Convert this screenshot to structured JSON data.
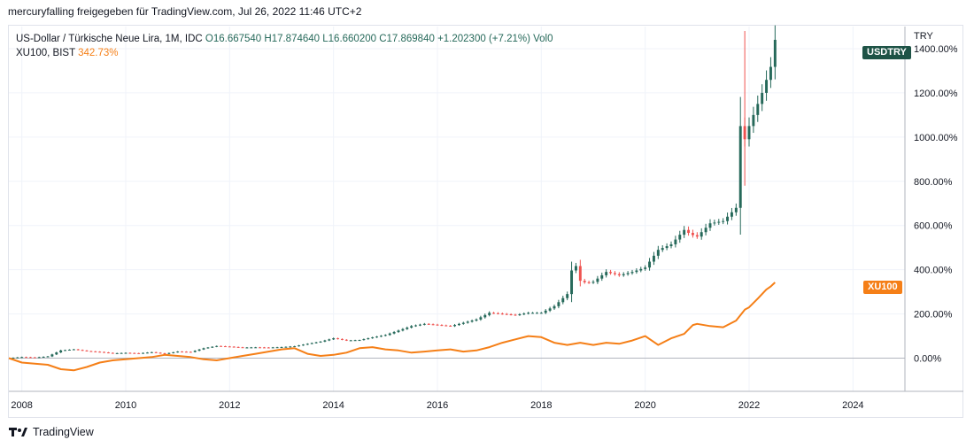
{
  "header": {
    "text": "mercuryfalling freigegeben für TradingView.com, Jul 26, 2022 11:46 UTC+2"
  },
  "legend": {
    "main_symbol": "US-Dollar / Türkische Neue Lira, 1M, IDC",
    "main_values": "O16.667540  H17.874640  L16.660200  C17.869840  +1.202300 (+7.21%)  Vol0",
    "compare_symbol": "XU100, BIST",
    "compare_value": "342.73%"
  },
  "price_tags": {
    "usdtry": "USDTRY",
    "xu100": "XU100"
  },
  "footer": {
    "brand": "TradingView"
  },
  "colors": {
    "up": "#26695a",
    "down": "#ef5350",
    "compare": "#f57f17",
    "grid": "#f0f3fa",
    "usdtry_tag": "#1e5346",
    "xu100_tag": "#f57f17"
  },
  "chart_data": {
    "type": "line",
    "axis_unit": "TRY",
    "x_range": [
      2007.75,
      2025.0
    ],
    "y_range": [
      -150,
      1500
    ],
    "y_ticks": [
      0,
      200,
      400,
      600,
      800,
      1000,
      1200,
      1400
    ],
    "y_tick_labels": [
      "0.00%",
      "200.00%",
      "400.00%",
      "600.00%",
      "800.00%",
      "1000.00%",
      "1200.00%",
      "1400.00%"
    ],
    "x_ticks": [
      2008,
      2010,
      2012,
      2014,
      2016,
      2018,
      2020,
      2022,
      2024
    ],
    "x_tick_labels": [
      "2008",
      "2010",
      "2012",
      "2014",
      "2016",
      "2018",
      "2020",
      "2022",
      "2024"
    ],
    "series": [
      {
        "name": "USDTRY",
        "style": "candlestick",
        "last_label": "USDTRY",
        "points": [
          [
            2007.75,
            0
          ],
          [
            2008.0,
            5
          ],
          [
            2008.25,
            3
          ],
          [
            2008.5,
            8
          ],
          [
            2008.75,
            35
          ],
          [
            2009.0,
            40
          ],
          [
            2009.25,
            32
          ],
          [
            2009.5,
            28
          ],
          [
            2009.75,
            22
          ],
          [
            2010.0,
            24
          ],
          [
            2010.25,
            22
          ],
          [
            2010.5,
            27
          ],
          [
            2010.75,
            20
          ],
          [
            2011.0,
            30
          ],
          [
            2011.25,
            28
          ],
          [
            2011.5,
            45
          ],
          [
            2011.75,
            55
          ],
          [
            2012.0,
            52
          ],
          [
            2012.25,
            48
          ],
          [
            2012.5,
            49
          ],
          [
            2012.75,
            48
          ],
          [
            2013.0,
            50
          ],
          [
            2013.25,
            54
          ],
          [
            2013.5,
            65
          ],
          [
            2013.75,
            75
          ],
          [
            2014.0,
            90
          ],
          [
            2014.25,
            80
          ],
          [
            2014.5,
            82
          ],
          [
            2014.75,
            94
          ],
          [
            2015.0,
            105
          ],
          [
            2015.25,
            125
          ],
          [
            2015.5,
            145
          ],
          [
            2015.75,
            155
          ],
          [
            2016.0,
            150
          ],
          [
            2016.25,
            145
          ],
          [
            2016.5,
            160
          ],
          [
            2016.75,
            175
          ],
          [
            2017.0,
            205
          ],
          [
            2017.25,
            200
          ],
          [
            2017.5,
            195
          ],
          [
            2017.75,
            205
          ],
          [
            2018.0,
            205
          ],
          [
            2018.25,
            235
          ],
          [
            2018.5,
            290
          ],
          [
            2018.625,
            450
          ],
          [
            2018.75,
            350
          ],
          [
            2018.875,
            340
          ],
          [
            2019.0,
            345
          ],
          [
            2019.25,
            390
          ],
          [
            2019.5,
            375
          ],
          [
            2019.75,
            390
          ],
          [
            2020.0,
            410
          ],
          [
            2020.25,
            490
          ],
          [
            2020.5,
            515
          ],
          [
            2020.75,
            580
          ],
          [
            2020.875,
            560
          ],
          [
            2021.0,
            550
          ],
          [
            2021.25,
            610
          ],
          [
            2021.5,
            620
          ],
          [
            2021.75,
            680
          ],
          [
            2021.833,
            1050
          ],
          [
            2021.917,
            990
          ],
          [
            2022.0,
            1050
          ],
          [
            2022.25,
            1200
          ],
          [
            2022.42,
            1320
          ],
          [
            2022.5,
            1440
          ]
        ]
      },
      {
        "name": "XU100",
        "style": "line",
        "last_label": "XU100",
        "last_value": 342.73,
        "points": [
          [
            2007.75,
            0
          ],
          [
            2008.0,
            -20
          ],
          [
            2008.25,
            -25
          ],
          [
            2008.5,
            -30
          ],
          [
            2008.75,
            -50
          ],
          [
            2009.0,
            -55
          ],
          [
            2009.25,
            -40
          ],
          [
            2009.5,
            -20
          ],
          [
            2009.75,
            -10
          ],
          [
            2010.0,
            -5
          ],
          [
            2010.25,
            0
          ],
          [
            2010.5,
            5
          ],
          [
            2010.75,
            15
          ],
          [
            2011.0,
            10
          ],
          [
            2011.25,
            5
          ],
          [
            2011.5,
            -5
          ],
          [
            2011.75,
            -10
          ],
          [
            2012.0,
            0
          ],
          [
            2012.25,
            10
          ],
          [
            2012.5,
            20
          ],
          [
            2012.75,
            30
          ],
          [
            2013.0,
            40
          ],
          [
            2013.25,
            45
          ],
          [
            2013.5,
            20
          ],
          [
            2013.75,
            10
          ],
          [
            2014.0,
            15
          ],
          [
            2014.25,
            25
          ],
          [
            2014.5,
            45
          ],
          [
            2014.75,
            50
          ],
          [
            2015.0,
            40
          ],
          [
            2015.25,
            35
          ],
          [
            2015.5,
            25
          ],
          [
            2015.75,
            30
          ],
          [
            2016.0,
            35
          ],
          [
            2016.25,
            40
          ],
          [
            2016.5,
            30
          ],
          [
            2016.75,
            35
          ],
          [
            2017.0,
            50
          ],
          [
            2017.25,
            70
          ],
          [
            2017.5,
            85
          ],
          [
            2017.75,
            100
          ],
          [
            2018.0,
            95
          ],
          [
            2018.25,
            70
          ],
          [
            2018.5,
            60
          ],
          [
            2018.75,
            70
          ],
          [
            2019.0,
            60
          ],
          [
            2019.25,
            70
          ],
          [
            2019.5,
            65
          ],
          [
            2019.75,
            80
          ],
          [
            2020.0,
            100
          ],
          [
            2020.25,
            60
          ],
          [
            2020.5,
            90
          ],
          [
            2020.75,
            110
          ],
          [
            2020.92,
            150
          ],
          [
            2021.0,
            155
          ],
          [
            2021.25,
            145
          ],
          [
            2021.5,
            140
          ],
          [
            2021.75,
            170
          ],
          [
            2021.92,
            220
          ],
          [
            2022.0,
            230
          ],
          [
            2022.17,
            270
          ],
          [
            2022.33,
            310
          ],
          [
            2022.42,
            325
          ],
          [
            2022.5,
            342.73
          ]
        ]
      }
    ]
  }
}
